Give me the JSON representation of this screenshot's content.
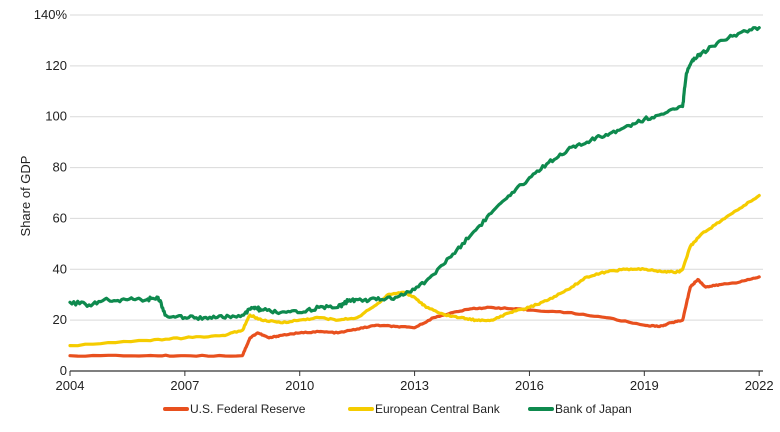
{
  "chart_data": {
    "type": "line",
    "title": "",
    "xlabel": "",
    "ylabel": "Share of GDP",
    "xlim": [
      2004,
      2022.1
    ],
    "ylim": [
      0,
      140
    ],
    "x_ticks": [
      2004,
      2007,
      2010,
      2013,
      2016,
      2019,
      2022
    ],
    "x_tick_labels": [
      "2004",
      "2007",
      "2010",
      "2013",
      "2016",
      "2019",
      "2022"
    ],
    "y_ticks": [
      0,
      20,
      40,
      60,
      80,
      100,
      120,
      140
    ],
    "y_tick_labels": [
      "0",
      "20",
      "40",
      "60",
      "80",
      "100",
      "120",
      "140%"
    ],
    "grid": "horizontal",
    "legend_position": "bottom",
    "series": [
      {
        "name": "U.S. Federal Reserve",
        "color": "#E8501E",
        "x": [
          2004,
          2006,
          2007,
          2008.5,
          2008.7,
          2008.9,
          2009.2,
          2009.5,
          2010,
          2010.5,
          2011,
          2011.5,
          2012,
          2012.5,
          2013,
          2013.5,
          2014,
          2014.5,
          2015,
          2015.5,
          2016,
          2017,
          2018,
          2019,
          2019.4,
          2019.7,
          2020,
          2020.2,
          2020.4,
          2020.6,
          2021,
          2021.5,
          2022
        ],
        "values": [
          6,
          6,
          6,
          6,
          13,
          15,
          13,
          14,
          15,
          15.5,
          15,
          16.5,
          18,
          17.5,
          17,
          21,
          23,
          24.5,
          25,
          24.5,
          24,
          23,
          21,
          18,
          17.5,
          19,
          20,
          33,
          36,
          33,
          34,
          35,
          37
        ]
      },
      {
        "name": "European Central Bank",
        "color": "#F5CC00",
        "x": [
          2004,
          2006,
          2007,
          2008,
          2008.5,
          2008.7,
          2009,
          2009.5,
          2010,
          2010.5,
          2011,
          2011.5,
          2012,
          2012.3,
          2012.7,
          2013,
          2013.3,
          2013.8,
          2014.2,
          2014.6,
          2015,
          2015.5,
          2016,
          2016.5,
          2017,
          2017.5,
          2018,
          2018.5,
          2019,
          2019.5,
          2019.9,
          2020,
          2020.2,
          2020.5,
          2021,
          2021.5,
          2022
        ],
        "values": [
          10,
          12,
          13,
          14,
          16,
          22,
          20,
          19,
          20,
          21,
          20,
          21,
          26,
          30,
          31,
          29,
          25,
          22,
          21,
          20,
          20,
          23,
          25,
          28,
          32,
          37,
          39,
          40,
          40,
          39,
          39,
          40,
          49,
          54,
          59,
          64,
          69
        ]
      },
      {
        "name": "Bank of Japan",
        "color": "#0E8A4E",
        "x": [
          2004,
          2004.5,
          2005,
          2005.5,
          2006,
          2006.3,
          2006.5,
          2007,
          2007.5,
          2008,
          2008.5,
          2008.8,
          2009,
          2009.5,
          2010,
          2010.5,
          2011,
          2011.3,
          2011.6,
          2012,
          2012.5,
          2013,
          2013.5,
          2014,
          2014.5,
          2015,
          2015.5,
          2016,
          2016.5,
          2017,
          2017.5,
          2018,
          2018.5,
          2019,
          2019.5,
          2020,
          2020.1,
          2020.3,
          2020.5,
          2021,
          2021.5,
          2022
        ],
        "values": [
          27,
          26,
          28,
          28,
          28,
          29,
          22,
          21,
          21,
          21,
          22,
          25,
          24,
          23,
          23,
          25,
          25,
          28,
          28,
          28,
          29,
          32,
          38,
          46,
          54,
          62,
          69,
          76,
          82,
          87,
          90,
          93,
          96,
          99,
          101,
          104,
          117,
          123,
          125,
          130,
          133,
          135
        ]
      }
    ]
  }
}
